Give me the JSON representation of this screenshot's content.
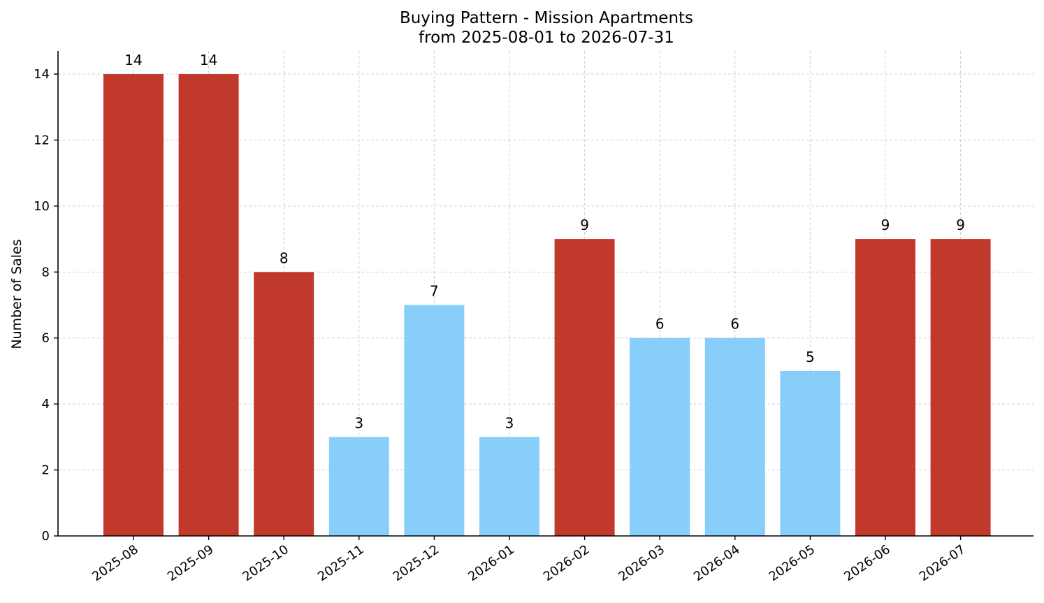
{
  "chart_data": {
    "type": "bar",
    "title": "Buying Pattern - Mission Apartments",
    "subtitle": "from 2025-08-01 to 2026-07-31",
    "xlabel": "",
    "ylabel": "Number of Sales",
    "categories": [
      "2025-08",
      "2025-09",
      "2025-10",
      "2025-11",
      "2025-12",
      "2026-01",
      "2026-02",
      "2026-03",
      "2026-04",
      "2026-05",
      "2026-06",
      "2026-07"
    ],
    "values": [
      14,
      14,
      8,
      3,
      7,
      3,
      9,
      6,
      6,
      5,
      9,
      9
    ],
    "bar_colors": [
      "#c0392b",
      "#c0392b",
      "#c0392b",
      "#87cefa",
      "#87cefa",
      "#87cefa",
      "#c0392b",
      "#87cefa",
      "#87cefa",
      "#87cefa",
      "#c0392b",
      "#c0392b"
    ],
    "ylim": [
      0,
      14.7
    ],
    "yticks": [
      0,
      2,
      4,
      6,
      8,
      10,
      12,
      14
    ],
    "grid": true,
    "legend": "none"
  }
}
